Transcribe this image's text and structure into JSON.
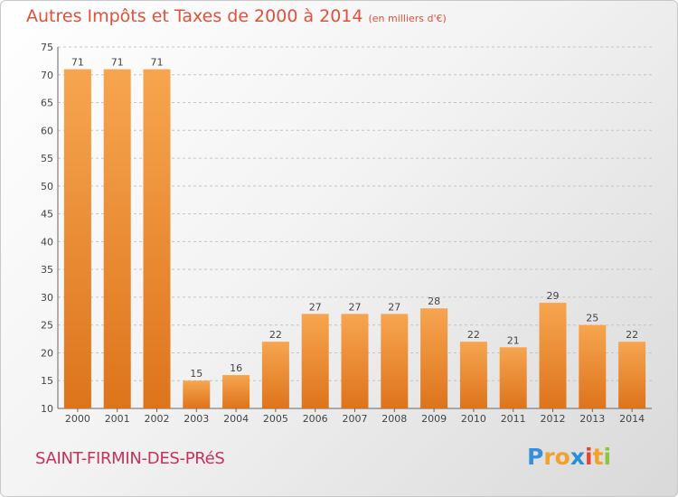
{
  "chart_data": {
    "type": "bar",
    "title": "Autres Impôts et Taxes de 2000 à 2014",
    "unit": "(en milliers d'€)",
    "categories": [
      "2000",
      "2001",
      "2002",
      "2003",
      "2004",
      "2005",
      "2006",
      "2007",
      "2008",
      "2009",
      "2010",
      "2011",
      "2012",
      "2013",
      "2014"
    ],
    "values": [
      71,
      71,
      71,
      15,
      16,
      22,
      27,
      27,
      27,
      28,
      22,
      21,
      29,
      25,
      22
    ],
    "ylim": [
      10,
      75
    ],
    "yticks": [
      10,
      15,
      20,
      25,
      30,
      35,
      40,
      45,
      50,
      55,
      60,
      65,
      70,
      75
    ],
    "grid": true,
    "bar_color": "#f0963c",
    "title_color": "#e0503a"
  },
  "commune": "SAINT-FIRMIN-DES-PRéS",
  "logo": {
    "letters": [
      "P",
      "r",
      "o",
      "x",
      "i",
      "t",
      "i"
    ],
    "colors": [
      "#3a8fd8",
      "#f2a12b",
      "#f2a12b",
      "#2a8fd6",
      "#e8452e",
      "#f2a12b",
      "#8cc63f"
    ]
  }
}
